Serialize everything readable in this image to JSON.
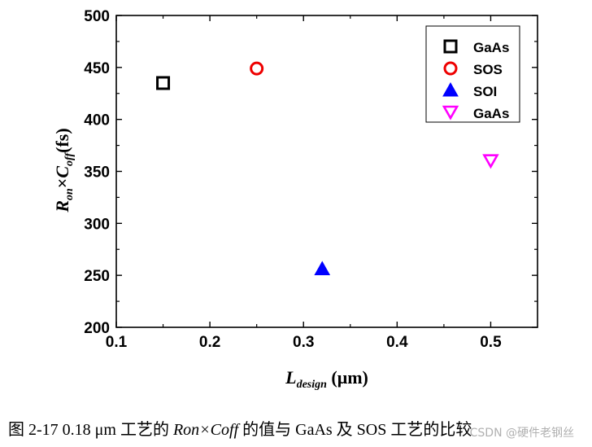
{
  "chart_data": {
    "type": "scatter",
    "title": "",
    "xlabel_main": "L",
    "xlabel_sub": "design",
    "xlabel_unit": " (μm)",
    "ylabel_r": "R",
    "ylabel_r_sub": "on",
    "ylabel_times": "×",
    "ylabel_c": "C",
    "ylabel_c_sub": "off",
    "ylabel_unit": "(fs)",
    "xlim": [
      0.1,
      0.55
    ],
    "ylim": [
      200,
      500
    ],
    "xticks": [
      "0.1",
      "0.2",
      "0.3",
      "0.4",
      "0.5"
    ],
    "yticks": [
      "200",
      "250",
      "300",
      "350",
      "400",
      "450",
      "500"
    ],
    "legend_position": "top-right",
    "series": [
      {
        "name": "GaAs",
        "marker": "square",
        "color": "#000000",
        "x": [
          0.15
        ],
        "y": [
          435
        ]
      },
      {
        "name": "SOS",
        "marker": "circle",
        "color": "#ee0000",
        "x": [
          0.25
        ],
        "y": [
          449
        ]
      },
      {
        "name": "SOI",
        "marker": "triangle-up",
        "color": "#0000ff",
        "x": [
          0.32
        ],
        "y": [
          256
        ]
      },
      {
        "name": "GaAs",
        "marker": "triangle-down",
        "color": "#ff00ff",
        "x": [
          0.5
        ],
        "y": [
          360
        ]
      }
    ]
  },
  "caption": {
    "prefix": "图 2-17 0.18 μm 工艺的 ",
    "italic": "Ron×Coff",
    "suffix": " 的值与 GaAs 及 SOS 工艺的比较"
  },
  "watermark": "CSDN @硬件老钢丝"
}
